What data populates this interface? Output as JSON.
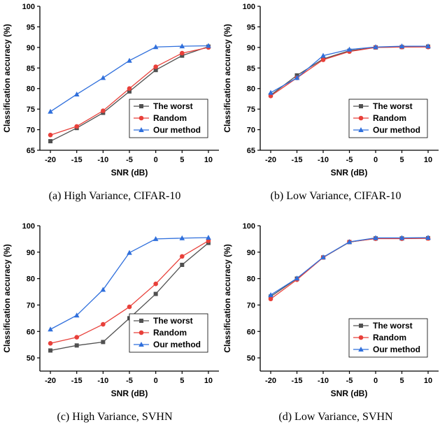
{
  "chart_data": [
    {
      "type": "line",
      "caption": "(a) High Variance, CIFAR-10",
      "xlabel": "SNR (dB)",
      "ylabel": "Classification accuracy (%)",
      "x": [
        -20,
        -15,
        -10,
        -5,
        0,
        5,
        10
      ],
      "xticks": [
        "-20",
        "-15",
        "-10",
        "-5",
        "0",
        "5",
        "10"
      ],
      "ylim": [
        65,
        100
      ],
      "yticks": [
        65,
        70,
        75,
        80,
        85,
        90,
        95,
        100
      ],
      "legend_position": "bottom-right",
      "series": [
        {
          "name": "The worst",
          "color": "#505050",
          "marker": "square",
          "values": [
            67.2,
            70.4,
            74.1,
            79.3,
            84.5,
            88.0,
            90.2
          ]
        },
        {
          "name": "Random",
          "color": "#e8403a",
          "marker": "circle",
          "values": [
            68.7,
            70.8,
            74.6,
            80.0,
            85.3,
            88.6,
            90.0
          ]
        },
        {
          "name": "Our method",
          "color": "#2f6fdc",
          "marker": "triangle",
          "values": [
            74.4,
            78.6,
            82.6,
            86.8,
            90.1,
            90.3,
            90.4
          ]
        }
      ]
    },
    {
      "type": "line",
      "caption": "(b) Low Variance, CIFAR-10",
      "xlabel": "SNR (dB)",
      "ylabel": "Classification accuracy (%)",
      "x": [
        -20,
        -15,
        -10,
        -5,
        0,
        5,
        10
      ],
      "xticks": [
        "-20",
        "-15",
        "-10",
        "-5",
        "0",
        "5",
        "10"
      ],
      "ylim": [
        65,
        100
      ],
      "yticks": [
        65,
        70,
        75,
        80,
        85,
        90,
        95,
        100
      ],
      "legend_position": "bottom-right",
      "series": [
        {
          "name": "The worst",
          "color": "#505050",
          "marker": "square",
          "values": [
            78.4,
            83.2,
            87.2,
            89.2,
            90.0,
            90.1,
            90.2
          ]
        },
        {
          "name": "Random",
          "color": "#e8403a",
          "marker": "circle",
          "values": [
            78.2,
            82.6,
            87.0,
            89.0,
            90.0,
            90.1,
            90.1
          ]
        },
        {
          "name": "Our method",
          "color": "#2f6fdc",
          "marker": "triangle",
          "values": [
            79.0,
            82.6,
            88.0,
            89.5,
            90.1,
            90.3,
            90.3
          ]
        }
      ]
    },
    {
      "type": "line",
      "caption": "(c) High Variance, SVHN",
      "xlabel": "SNR (dB)",
      "ylabel": "Classification accuracy (%)",
      "x": [
        -20,
        -15,
        -10,
        -5,
        0,
        5,
        10
      ],
      "xticks": [
        "-20",
        "-15",
        "-10",
        "-5",
        "0",
        "5",
        "10"
      ],
      "ylim": [
        45,
        100
      ],
      "yticks": [
        50,
        60,
        70,
        80,
        90,
        100
      ],
      "legend_position": "bottom-right",
      "series": [
        {
          "name": "The worst",
          "color": "#505050",
          "marker": "square",
          "values": [
            52.8,
            54.7,
            56.0,
            65.0,
            74.2,
            85.2,
            93.5
          ]
        },
        {
          "name": "Random",
          "color": "#e8403a",
          "marker": "circle",
          "values": [
            55.5,
            57.8,
            62.7,
            69.3,
            78.0,
            88.4,
            94.3
          ]
        },
        {
          "name": "Our method",
          "color": "#2f6fdc",
          "marker": "triangle",
          "values": [
            60.8,
            66.1,
            75.8,
            89.8,
            95.0,
            95.3,
            95.5
          ]
        }
      ]
    },
    {
      "type": "line",
      "caption": "(d) Low Variance, SVHN",
      "xlabel": "SNR (dB)",
      "ylabel": "Classification accuracy (%)",
      "x": [
        -20,
        -15,
        -10,
        -5,
        0,
        5,
        10
      ],
      "xticks": [
        "-20",
        "-15",
        "-10",
        "-5",
        "0",
        "5",
        "10"
      ],
      "ylim": [
        45,
        100
      ],
      "yticks": [
        50,
        60,
        70,
        80,
        90,
        100
      ],
      "legend_position": "bottom-right",
      "series": [
        {
          "name": "The worst",
          "color": "#505050",
          "marker": "square",
          "values": [
            73.2,
            80.0,
            88.0,
            93.8,
            95.2,
            95.2,
            95.3
          ]
        },
        {
          "name": "Random",
          "color": "#e8403a",
          "marker": "circle",
          "values": [
            72.3,
            79.6,
            88.0,
            93.9,
            95.1,
            95.1,
            95.2
          ]
        },
        {
          "name": "Our method",
          "color": "#2f6fdc",
          "marker": "triangle",
          "values": [
            73.8,
            80.1,
            88.1,
            93.9,
            95.4,
            95.4,
            95.5
          ]
        }
      ]
    }
  ]
}
